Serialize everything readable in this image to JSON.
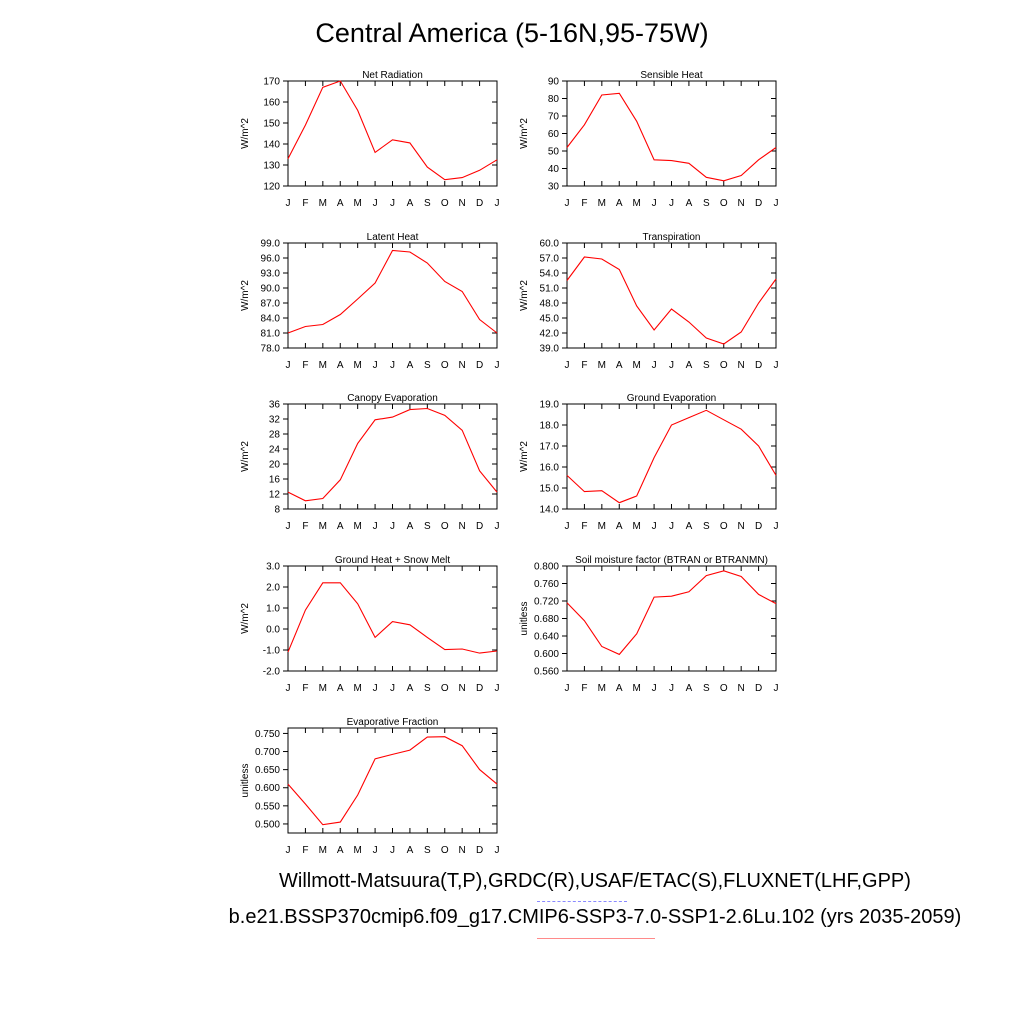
{
  "title": "Central America (5-16N,95-75W)",
  "footer": {
    "line1": "Willmott-Matsuura(T,P),GRDC(R),USAF/ETAC(S),FLUXNET(LHF,GPP)",
    "line2": "b.e21.BSSP370cmip6.f09_g17.CMIP6-SSP3-7.0-SSP1-2.6Lu.102 (yrs 2035-2059)"
  },
  "colors": {
    "line": "#ff0000",
    "legend_blue": "#8a8aff",
    "legend_red": "#ff8a8a"
  },
  "chart_data": [
    {
      "type": "line",
      "title": "Net Radiation",
      "ylabel": "W/m^2",
      "x": [
        "J",
        "F",
        "M",
        "A",
        "M",
        "J",
        "J",
        "A",
        "S",
        "O",
        "N",
        "D",
        "J"
      ],
      "ylim": [
        120,
        170
      ],
      "yticks": [
        "120",
        "130",
        "140",
        "150",
        "160",
        "170"
      ],
      "series": [
        {
          "values": [
            133,
            149,
            167,
            170,
            156,
            136,
            142,
            140.5,
            129,
            123,
            124,
            127.5,
            132.5
          ]
        }
      ]
    },
    {
      "type": "line",
      "title": "Sensible Heat",
      "ylabel": "W/m^2",
      "x": [
        "J",
        "F",
        "M",
        "A",
        "M",
        "J",
        "J",
        "A",
        "S",
        "O",
        "N",
        "D",
        "J"
      ],
      "ylim": [
        30,
        90
      ],
      "yticks": [
        "30",
        "40",
        "50",
        "60",
        "70",
        "80",
        "90"
      ],
      "series": [
        {
          "values": [
            52,
            65,
            82,
            83,
            67,
            45,
            44.5,
            43,
            35,
            33,
            36,
            45,
            52
          ]
        }
      ]
    },
    {
      "type": "line",
      "title": "Latent Heat",
      "ylabel": "W/m^2",
      "x": [
        "J",
        "F",
        "M",
        "A",
        "M",
        "J",
        "J",
        "A",
        "S",
        "O",
        "N",
        "D",
        "J"
      ],
      "ylim": [
        78,
        99
      ],
      "yticks": [
        "78.0",
        "81.0",
        "84.0",
        "87.0",
        "90.0",
        "93.0",
        "96.0",
        "99.0"
      ],
      "series": [
        {
          "values": [
            81,
            82.3,
            82.7,
            84.7,
            87.8,
            91,
            97.5,
            97.2,
            95,
            91.3,
            89.3,
            83.7,
            81
          ]
        }
      ]
    },
    {
      "type": "line",
      "title": "Transpiration",
      "ylabel": "W/m^2",
      "x": [
        "J",
        "F",
        "M",
        "A",
        "M",
        "J",
        "J",
        "A",
        "S",
        "O",
        "N",
        "D",
        "J"
      ],
      "ylim": [
        39,
        60
      ],
      "yticks": [
        "39.0",
        "42.0",
        "45.0",
        "48.0",
        "51.0",
        "54.0",
        "57.0",
        "60.0"
      ],
      "series": [
        {
          "values": [
            52.5,
            57.2,
            56.8,
            54.7,
            47.4,
            42.6,
            46.8,
            44.2,
            41,
            39.8,
            42.2,
            48,
            52.8
          ]
        }
      ]
    },
    {
      "type": "line",
      "title": "Canopy Evaporation",
      "ylabel": "W/m^2",
      "x": [
        "J",
        "F",
        "M",
        "A",
        "M",
        "J",
        "J",
        "A",
        "S",
        "O",
        "N",
        "D",
        "J"
      ],
      "ylim": [
        8,
        36
      ],
      "yticks": [
        "8",
        "12",
        "16",
        "20",
        "24",
        "28",
        "32",
        "36"
      ],
      "series": [
        {
          "values": [
            12.5,
            10.2,
            10.8,
            15.8,
            25.5,
            31.8,
            32.5,
            34.5,
            34.8,
            33,
            29,
            18.2,
            12.5
          ]
        }
      ]
    },
    {
      "type": "line",
      "title": "Ground Evaporation",
      "ylabel": "W/m^2",
      "x": [
        "J",
        "F",
        "M",
        "A",
        "M",
        "J",
        "J",
        "A",
        "S",
        "O",
        "N",
        "D",
        "J"
      ],
      "ylim": [
        14,
        19
      ],
      "yticks": [
        "14.0",
        "15.0",
        "16.0",
        "17.0",
        "18.0",
        "19.0"
      ],
      "series": [
        {
          "values": [
            15.6,
            14.83,
            14.87,
            14.3,
            14.62,
            16.45,
            18,
            18.35,
            18.7,
            18.25,
            17.8,
            17,
            15.6
          ]
        }
      ]
    },
    {
      "type": "line",
      "title": "Ground Heat + Snow Melt",
      "ylabel": "W/m^2",
      "x": [
        "J",
        "F",
        "M",
        "A",
        "M",
        "J",
        "J",
        "A",
        "S",
        "O",
        "N",
        "D",
        "J"
      ],
      "ylim": [
        -2,
        3
      ],
      "yticks": [
        "-2.0",
        "-1.0",
        "0.0",
        "1.0",
        "2.0",
        "3.0"
      ],
      "series": [
        {
          "values": [
            -1.1,
            0.9,
            2.2,
            2.2,
            1.2,
            -0.4,
            0.35,
            0.2,
            -0.4,
            -0.98,
            -0.95,
            -1.15,
            -1.05
          ]
        }
      ]
    },
    {
      "type": "line",
      "title": "Soil moisture factor (BTRAN or BTRANMN)",
      "ylabel": "unitless",
      "x": [
        "J",
        "F",
        "M",
        "A",
        "M",
        "J",
        "J",
        "A",
        "S",
        "O",
        "N",
        "D",
        "J"
      ],
      "ylim": [
        0.56,
        0.8
      ],
      "yticks": [
        "0.560",
        "0.600",
        "0.640",
        "0.680",
        "0.720",
        "0.760",
        "0.800"
      ],
      "series": [
        {
          "values": [
            0.716,
            0.675,
            0.616,
            0.598,
            0.645,
            0.729,
            0.731,
            0.741,
            0.778,
            0.789,
            0.776,
            0.735,
            0.714
          ]
        }
      ]
    },
    {
      "type": "line",
      "title": "Evaporative Fraction",
      "ylabel": "unitless",
      "x": [
        "J",
        "F",
        "M",
        "A",
        "M",
        "J",
        "J",
        "A",
        "S",
        "O",
        "N",
        "D",
        "J"
      ],
      "ylim": [
        0.475,
        0.765
      ],
      "yticks": [
        "0.500",
        "0.550",
        "0.600",
        "0.650",
        "0.700",
        "0.750"
      ],
      "series": [
        {
          "values": [
            0.61,
            0.555,
            0.498,
            0.505,
            0.58,
            0.68,
            0.692,
            0.704,
            0.74,
            0.741,
            0.716,
            0.65,
            0.61
          ]
        }
      ]
    }
  ]
}
